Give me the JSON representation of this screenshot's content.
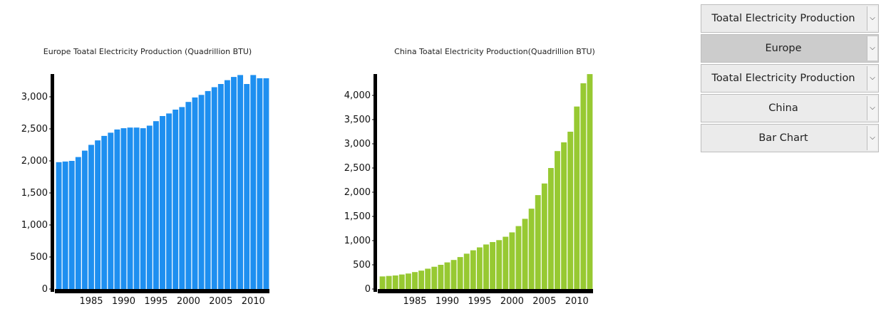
{
  "controls": {
    "selects": [
      {
        "value": "Toatal Electricity Production",
        "active": false
      },
      {
        "value": "Europe",
        "active": true
      },
      {
        "value": "Toatal Electricity Production",
        "active": false
      },
      {
        "value": "China",
        "active": false
      },
      {
        "value": "Bar Chart",
        "active": false
      }
    ],
    "arrow_icon": "chevron-down-icon"
  },
  "chart_data": [
    {
      "type": "bar",
      "title": "Europe Toatal Electricity Production (Quadrillion BTU)",
      "color": "#1e8ff0",
      "x": [
        1980,
        1981,
        1982,
        1983,
        1984,
        1985,
        1986,
        1987,
        1988,
        1989,
        1990,
        1991,
        1992,
        1993,
        1994,
        1995,
        1996,
        1997,
        1998,
        1999,
        2000,
        2001,
        2002,
        2003,
        2004,
        2005,
        2006,
        2007,
        2008,
        2009,
        2010,
        2011,
        2012
      ],
      "values": [
        1980,
        1990,
        2000,
        2060,
        2160,
        2250,
        2320,
        2390,
        2440,
        2490,
        2510,
        2520,
        2520,
        2510,
        2550,
        2620,
        2700,
        2740,
        2800,
        2840,
        2920,
        2990,
        3030,
        3090,
        3150,
        3200,
        3260,
        3310,
        3340,
        3200,
        3340,
        3290,
        3290
      ],
      "xticks": [
        "1985",
        "1990",
        "1995",
        "2000",
        "2005",
        "2010"
      ],
      "xtick_values": [
        1985,
        1990,
        1995,
        2000,
        2005,
        2010
      ],
      "yticks": [
        "0",
        "500",
        "1,000",
        "1,500",
        "2,000",
        "2,500",
        "3,000"
      ],
      "ytick_values": [
        0,
        500,
        1000,
        1500,
        2000,
        2500,
        3000
      ],
      "ylim": [
        0,
        3400
      ]
    },
    {
      "type": "bar",
      "title": "China Toatal Electricity Production(Quadrillion BTU)",
      "color": "#97c932",
      "x": [
        1980,
        1981,
        1982,
        1983,
        1984,
        1985,
        1986,
        1987,
        1988,
        1989,
        1990,
        1991,
        1992,
        1993,
        1994,
        1995,
        1996,
        1997,
        1998,
        1999,
        2000,
        2001,
        2002,
        2003,
        2004,
        2005,
        2006,
        2007,
        2008,
        2009,
        2010,
        2011,
        2012
      ],
      "values": [
        260,
        270,
        280,
        300,
        320,
        350,
        380,
        420,
        460,
        500,
        550,
        600,
        660,
        730,
        800,
        860,
        920,
        970,
        1010,
        1080,
        1170,
        1300,
        1450,
        1660,
        1940,
        2180,
        2500,
        2850,
        3030,
        3250,
        3770,
        4250,
        4440
      ],
      "xticks": [
        "1985",
        "1990",
        "1995",
        "2000",
        "2005",
        "2010"
      ],
      "xtick_values": [
        1985,
        1990,
        1995,
        2000,
        2005,
        2010
      ],
      "yticks": [
        "0",
        "500",
        "1,000",
        "1,500",
        "2,000",
        "2,500",
        "3,000",
        "3,500",
        "4,000"
      ],
      "ytick_values": [
        0,
        500,
        1000,
        1500,
        2000,
        2500,
        3000,
        3500,
        4000
      ],
      "ylim": [
        0,
        4500
      ]
    }
  ]
}
